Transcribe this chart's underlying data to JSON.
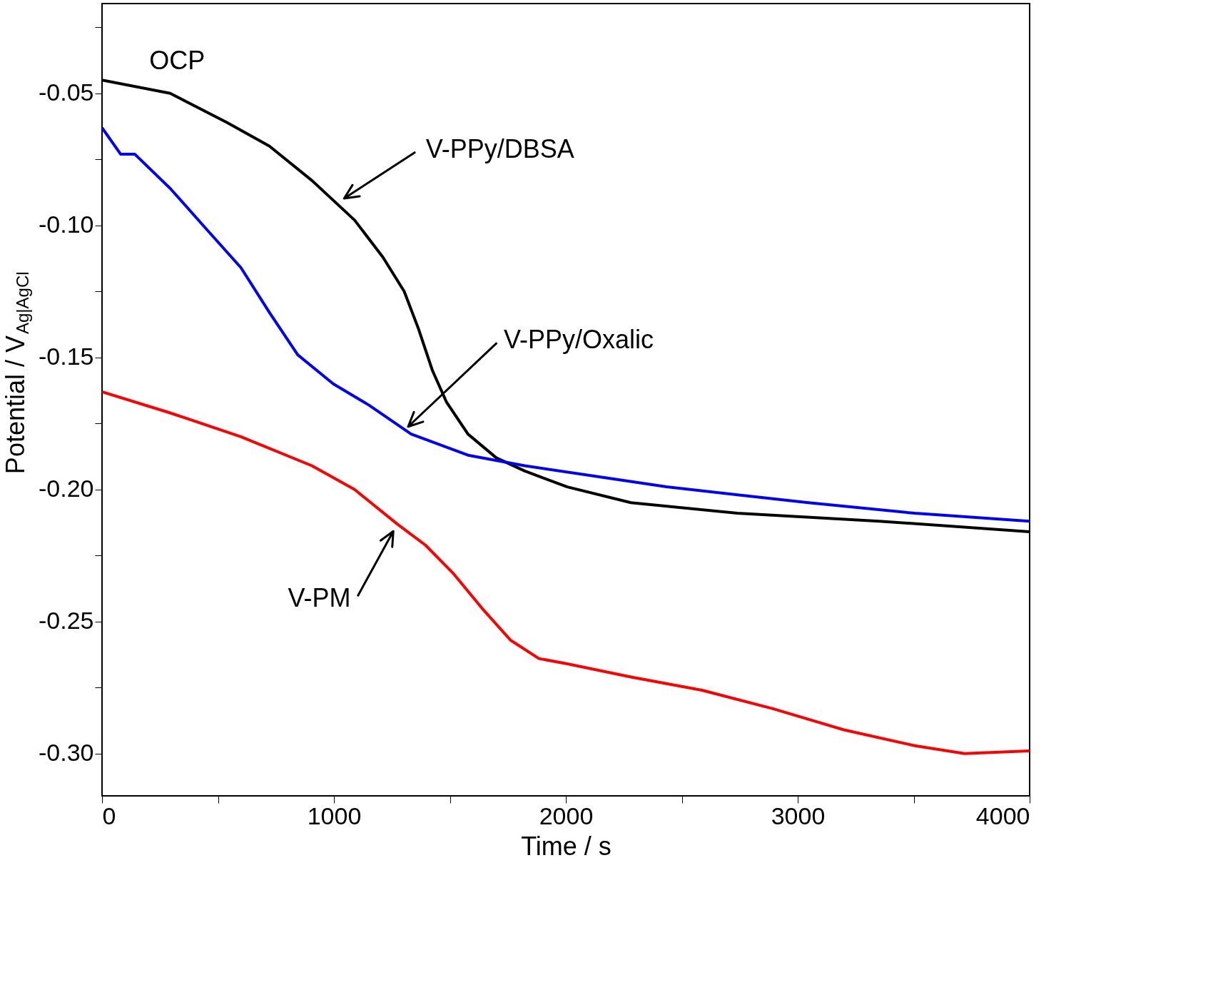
{
  "chart_data": {
    "type": "line",
    "xlabel": "Time / s",
    "ylabel": "Potential / V$_{Ag|AgCl}$",
    "xlim": [
      0,
      4000
    ],
    "ylim": [
      -0.316,
      -0.016
    ],
    "xticks": [
      0,
      {
        "value": 500,
        "label": null
      },
      1000,
      {
        "value": 1500,
        "label": null
      },
      2000,
      {
        "value": 2500,
        "label": null
      },
      3000,
      {
        "value": 3500,
        "label": null
      },
      4000
    ],
    "yticks": [
      {
        "value": -0.3,
        "label": "-0.30"
      },
      {
        "value": -0.275,
        "label": null
      },
      {
        "value": -0.25,
        "label": "-0.25"
      },
      {
        "value": -0.225,
        "label": null
      },
      {
        "value": -0.2,
        "label": "-0.20"
      },
      {
        "value": -0.175,
        "label": null
      },
      {
        "value": -0.15,
        "label": "-0.15"
      },
      {
        "value": -0.125,
        "label": null
      },
      {
        "value": -0.1,
        "label": "-0.10"
      },
      {
        "value": -0.075,
        "label": null
      },
      {
        "value": -0.05,
        "label": "-0.05"
      },
      {
        "value": -0.025,
        "label": null
      }
    ],
    "grid": false,
    "marker": "none",
    "line_style": "solid",
    "series": [
      {
        "color": "#000000",
        "x": [
          0,
          294,
          538,
          722,
          905,
          1089,
          1211,
          1303,
          1364,
          1425,
          1486,
          1578,
          1700,
          1823,
          2006,
          2281,
          2740,
          3352,
          4000
        ],
        "values": [
          -0.045,
          -0.05,
          -0.061,
          -0.07,
          -0.083,
          -0.098,
          -0.112,
          -0.125,
          -0.139,
          -0.155,
          -0.167,
          -0.179,
          -0.188,
          -0.193,
          -0.199,
          -0.205,
          -0.209,
          -0.212,
          -0.216
        ]
      },
      {
        "color": "#0000ff",
        "x": [
          0,
          80,
          141,
          294,
          446,
          599,
          722,
          844,
          997,
          1150,
          1333,
          1578,
          1823,
          2128,
          2434,
          2740,
          3046,
          3505,
          4000
        ],
        "values": [
          -0.063,
          -0.073,
          -0.073,
          -0.086,
          -0.101,
          -0.116,
          -0.133,
          -0.149,
          -0.16,
          -0.168,
          -0.179,
          -0.187,
          -0.191,
          -0.195,
          -0.199,
          -0.202,
          -0.205,
          -0.209,
          -0.212
        ]
      },
      {
        "color": "#ff0000",
        "x": [
          0,
          294,
          599,
          905,
          1089,
          1272,
          1394,
          1517,
          1639,
          1761,
          1884,
          2006,
          2281,
          2587,
          2893,
          3199,
          3505,
          3719,
          4000
        ],
        "values": [
          -0.163,
          -0.171,
          -0.18,
          -0.191,
          -0.2,
          -0.213,
          -0.221,
          -0.232,
          -0.245,
          -0.257,
          -0.264,
          -0.266,
          -0.271,
          -0.276,
          -0.283,
          -0.291,
          -0.297,
          -0.3,
          -0.299
        ]
      }
    ],
    "annotations": [
      "OCP",
      "V-PPy/DBSA",
      "V-PPy/Oxalic",
      "V-PM"
    ]
  }
}
